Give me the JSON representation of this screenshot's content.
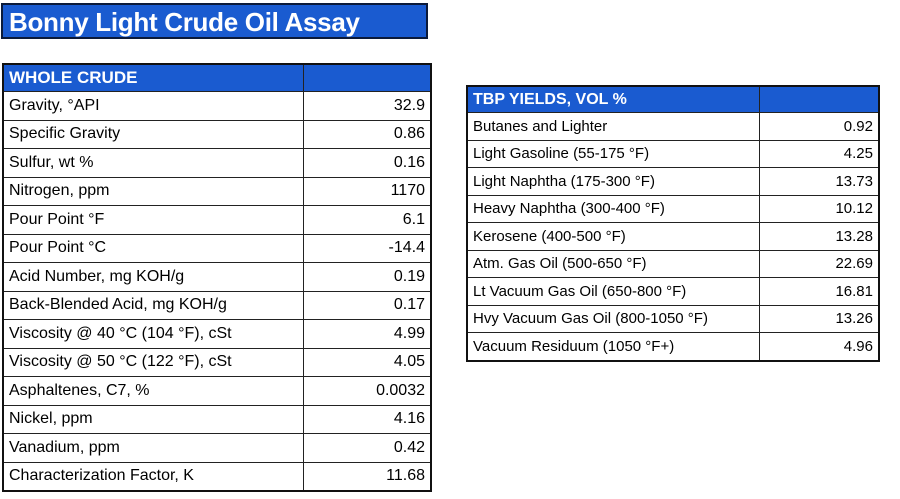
{
  "title": "Bonny Light Crude Oil Assay",
  "colors": {
    "header_blue": "#1a5bd0",
    "border": "#222222"
  },
  "whole_crude": {
    "header": "WHOLE CRUDE",
    "rows": [
      {
        "label": "Gravity, °API",
        "value": "32.9"
      },
      {
        "label": "Specific Gravity",
        "value": "0.86"
      },
      {
        "label": "Sulfur, wt %",
        "value": "0.16"
      },
      {
        "label": "Nitrogen, ppm",
        "value": "1170"
      },
      {
        "label": "Pour Point °F",
        "value": "6.1"
      },
      {
        "label": "Pour Point °C",
        "value": "-14.4"
      },
      {
        "label": "Acid Number, mg KOH/g",
        "value": "0.19"
      },
      {
        "label": "Back-Blended Acid, mg KOH/g",
        "value": "0.17"
      },
      {
        "label": "Viscosity @ 40 °C (104 °F), cSt",
        "value": "4.99"
      },
      {
        "label": "Viscosity @ 50 °C (122 °F), cSt",
        "value": "4.05"
      },
      {
        "label": "Asphaltenes, C7, %",
        "value": "0.0032"
      },
      {
        "label": "Nickel, ppm",
        "value": "4.16"
      },
      {
        "label": "Vanadium, ppm",
        "value": "0.42"
      },
      {
        "label": "Characterization Factor, K",
        "value": "11.68"
      }
    ]
  },
  "tbp_yields": {
    "header": "TBP YIELDS, VOL %",
    "rows": [
      {
        "label": "Butanes and Lighter",
        "value": "0.92"
      },
      {
        "label": "Light Gasoline (55-175 °F)",
        "value": "4.25"
      },
      {
        "label": "Light Naphtha (175-300 °F)",
        "value": "13.73"
      },
      {
        "label": "Heavy Naphtha (300-400 °F)",
        "value": "10.12"
      },
      {
        "label": "Kerosene (400-500 °F)",
        "value": "13.28"
      },
      {
        "label": "Atm. Gas Oil (500-650 °F)",
        "value": "22.69"
      },
      {
        "label": "Lt Vacuum Gas Oil (650-800 °F)",
        "value": "16.81"
      },
      {
        "label": "Hvy Vacuum Gas Oil (800-1050 °F)",
        "value": "13.26"
      },
      {
        "label": "Vacuum Residuum (1050 °F+)",
        "value": "4.96"
      }
    ]
  }
}
